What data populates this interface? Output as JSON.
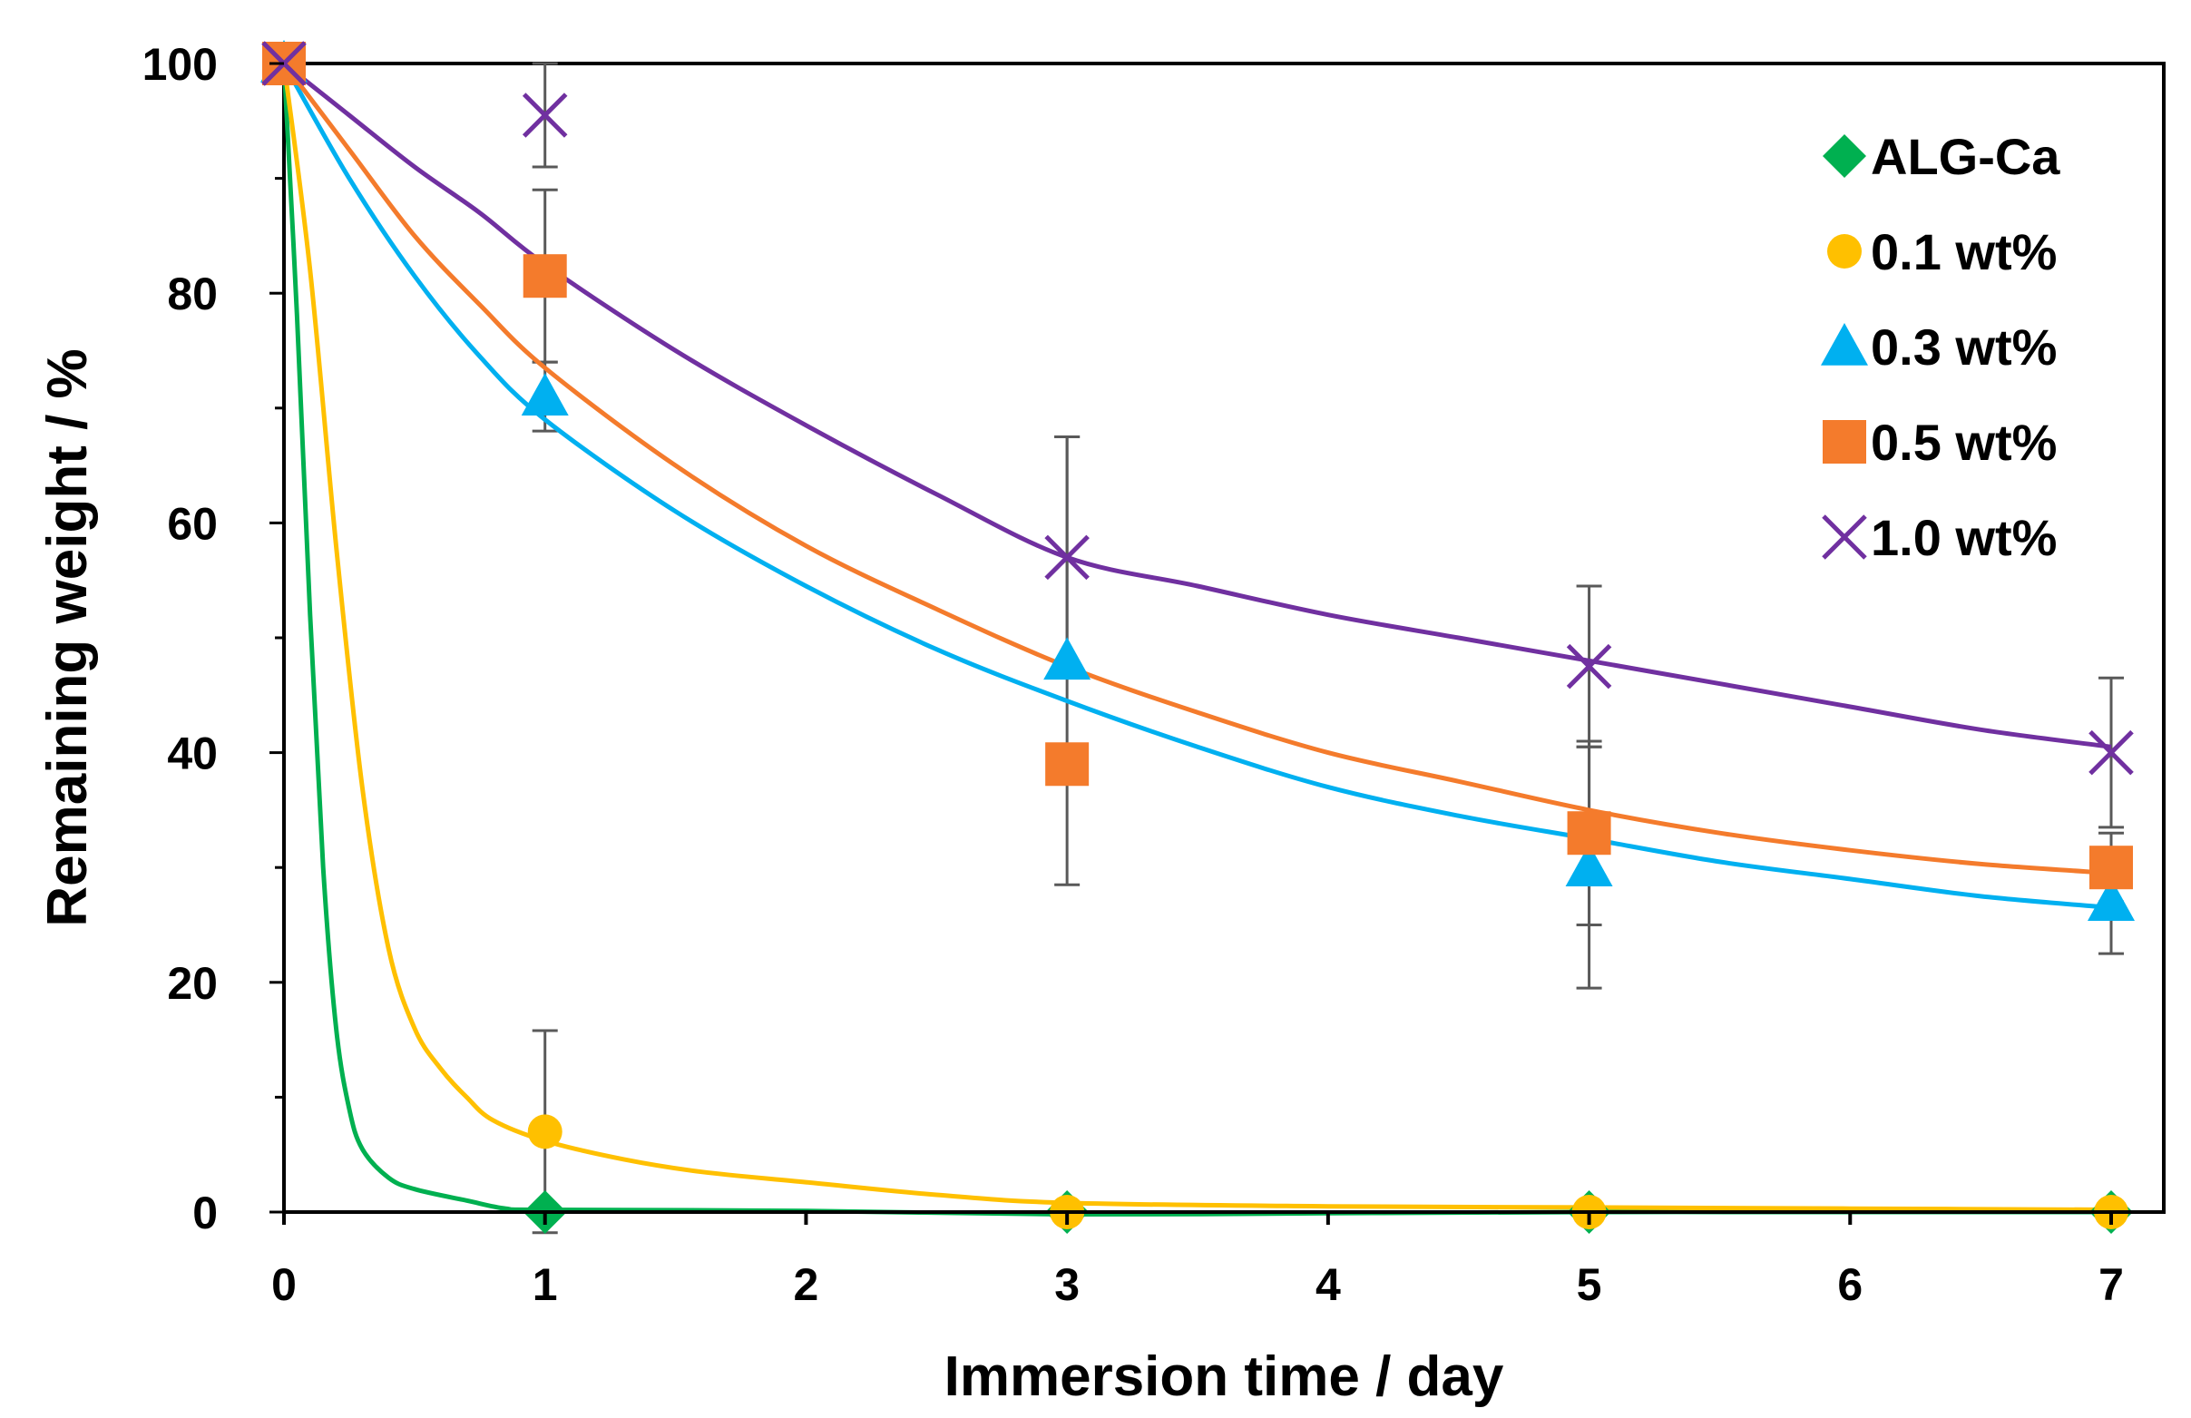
{
  "chart_data": {
    "type": "scatter",
    "xlabel": "Immersion time / day",
    "ylabel": "Remaining weight / %",
    "xlim": [
      0,
      7.2
    ],
    "ylim": [
      0,
      100
    ],
    "xticks": [
      "0",
      "1",
      "2",
      "3",
      "4",
      "5",
      "6",
      "7"
    ],
    "yticks": [
      "0",
      "20",
      "40",
      "60",
      "80",
      "100"
    ],
    "grid": false,
    "legend_position": "top-right",
    "fitted_curves": true,
    "error_bar_color": "#595959",
    "series": [
      {
        "name": "ALG-Ca",
        "marker": "diamond",
        "color": "#00B050",
        "x": [
          0,
          1,
          3,
          5,
          7
        ],
        "y": [
          100,
          0,
          0,
          0,
          0
        ],
        "error": [
          0,
          0,
          0,
          0,
          0
        ],
        "curve": [
          [
            0,
            100
          ],
          [
            0.05,
            78
          ],
          [
            0.1,
            52
          ],
          [
            0.15,
            30
          ],
          [
            0.2,
            16
          ],
          [
            0.25,
            9
          ],
          [
            0.3,
            5.5
          ],
          [
            0.4,
            3
          ],
          [
            0.5,
            2
          ],
          [
            0.7,
            1
          ],
          [
            0.85,
            0.3
          ],
          [
            1,
            0.2
          ],
          [
            2,
            0.1
          ],
          [
            3,
            -0.2
          ],
          [
            4,
            -0.1
          ],
          [
            5,
            0
          ],
          [
            6,
            0
          ],
          [
            7,
            0
          ]
        ]
      },
      {
        "name": "0.1 wt%",
        "marker": "circle",
        "color": "#FFC000",
        "x": [
          0,
          1,
          3,
          5,
          7
        ],
        "y": [
          100,
          7,
          0,
          0,
          0
        ],
        "error": [
          0,
          8.8,
          0,
          0,
          0
        ],
        "curve": [
          [
            0,
            100
          ],
          [
            0.1,
            82
          ],
          [
            0.2,
            58
          ],
          [
            0.3,
            37
          ],
          [
            0.4,
            23
          ],
          [
            0.5,
            16
          ],
          [
            0.6,
            12.5
          ],
          [
            0.7,
            10
          ],
          [
            0.8,
            8
          ],
          [
            1,
            6.2
          ],
          [
            1.3,
            4.6
          ],
          [
            1.6,
            3.5
          ],
          [
            2,
            2.6
          ],
          [
            2.5,
            1.5
          ],
          [
            3,
            0.8
          ],
          [
            4,
            0.5
          ],
          [
            5,
            0.4
          ],
          [
            6,
            0.3
          ],
          [
            7,
            0.2
          ]
        ]
      },
      {
        "name": "0.3 wt%",
        "marker": "triangle",
        "color": "#00B0F0",
        "x": [
          0,
          1,
          3,
          5,
          7
        ],
        "y": [
          100,
          71,
          48,
          30,
          27
        ],
        "error": [
          0,
          3,
          19.5,
          10.5,
          4.5
        ],
        "curve": [
          [
            0,
            100
          ],
          [
            0.25,
            90
          ],
          [
            0.5,
            81.5
          ],
          [
            0.75,
            74.5
          ],
          [
            1,
            69
          ],
          [
            1.5,
            61
          ],
          [
            2,
            54.5
          ],
          [
            2.5,
            49
          ],
          [
            3,
            44.5
          ],
          [
            3.5,
            40.5
          ],
          [
            4,
            37
          ],
          [
            4.5,
            34.5
          ],
          [
            5,
            32.5
          ],
          [
            5.5,
            30.5
          ],
          [
            6,
            29
          ],
          [
            6.5,
            27.5
          ],
          [
            7,
            26.5
          ]
        ]
      },
      {
        "name": "0.5 wt%",
        "marker": "square",
        "color": "#F47B2C",
        "x": [
          0,
          1,
          3,
          5,
          7
        ],
        "y": [
          100,
          81.5,
          39,
          33,
          30
        ],
        "error": [
          0,
          7.5,
          0,
          8,
          3
        ],
        "curve": [
          [
            0,
            100
          ],
          [
            0.25,
            92.5
          ],
          [
            0.5,
            85
          ],
          [
            0.75,
            79
          ],
          [
            1,
            73.5
          ],
          [
            1.5,
            65
          ],
          [
            2,
            58
          ],
          [
            2.5,
            52.5
          ],
          [
            3,
            47.5
          ],
          [
            3.5,
            43.5
          ],
          [
            4,
            40
          ],
          [
            4.5,
            37.5
          ],
          [
            5,
            35
          ],
          [
            5.5,
            33
          ],
          [
            6,
            31.5
          ],
          [
            6.5,
            30.3
          ],
          [
            7,
            29.5
          ]
        ]
      },
      {
        "name": "1.0 wt%",
        "marker": "x",
        "color": "#7030A0",
        "x": [
          0,
          1,
          3,
          5,
          7
        ],
        "y": [
          100,
          95.5,
          57,
          47.5,
          40
        ],
        "error": [
          0,
          4.5,
          10.5,
          7,
          6.5
        ],
        "curve": [
          [
            0,
            100
          ],
          [
            0.25,
            95.5
          ],
          [
            0.5,
            91
          ],
          [
            0.75,
            87
          ],
          [
            1,
            82.5
          ],
          [
            1.5,
            75
          ],
          [
            2,
            68.5
          ],
          [
            2.5,
            62.5
          ],
          [
            3,
            57
          ],
          [
            3.5,
            54.5
          ],
          [
            4,
            52
          ],
          [
            4.5,
            50
          ],
          [
            5,
            48
          ],
          [
            5.5,
            46
          ],
          [
            6,
            44
          ],
          [
            6.5,
            42
          ],
          [
            7,
            40.5
          ]
        ]
      }
    ]
  }
}
